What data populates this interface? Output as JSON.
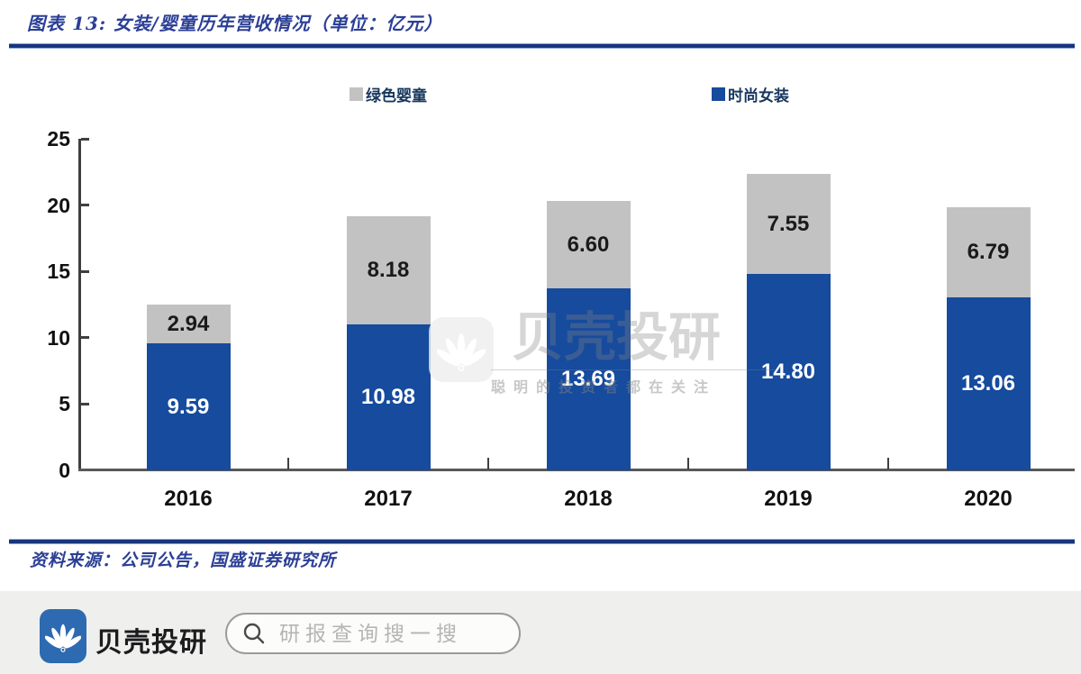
{
  "header": {
    "title": "图表 13:  女装/婴童历年营收情况（单位：亿元）"
  },
  "legend": {
    "items": [
      {
        "label": "绿色婴童",
        "color": "#c2c2c2"
      },
      {
        "label": "时尚女装",
        "color": "#164b9d"
      }
    ]
  },
  "chart_data": {
    "type": "bar",
    "stacked": true,
    "title": "女装/婴童历年营收情况",
    "unit": "亿元",
    "categories": [
      "2016",
      "2017",
      "2018",
      "2019",
      "2020"
    ],
    "series": [
      {
        "name": "时尚女装",
        "color": "#164b9d",
        "label_color": "#ffffff",
        "values": [
          9.59,
          10.98,
          13.69,
          14.8,
          13.06
        ],
        "labels": [
          "9.59",
          "10.98",
          "13.69",
          "14.80",
          "13.06"
        ]
      },
      {
        "name": "绿色婴童",
        "color": "#c2c2c2",
        "label_color": "#1a1a1a",
        "values": [
          2.94,
          8.18,
          6.6,
          7.55,
          6.79
        ],
        "labels": [
          "2.94",
          "8.18",
          "6.60",
          "7.55",
          "6.79"
        ]
      }
    ],
    "ylim": [
      0,
      25
    ],
    "yticks": [
      0,
      5,
      10,
      15,
      20,
      25
    ],
    "grid": false,
    "legend_position": "top"
  },
  "watermark": {
    "logo": "shell-icon",
    "text": "贝壳投研",
    "subtitle": "聪明的投资者都在关注"
  },
  "source": {
    "text": "资料来源：公司公告，国盛证券研究所"
  },
  "footer": {
    "brand": "贝壳投研",
    "search_placeholder": "研报查询搜一搜"
  }
}
